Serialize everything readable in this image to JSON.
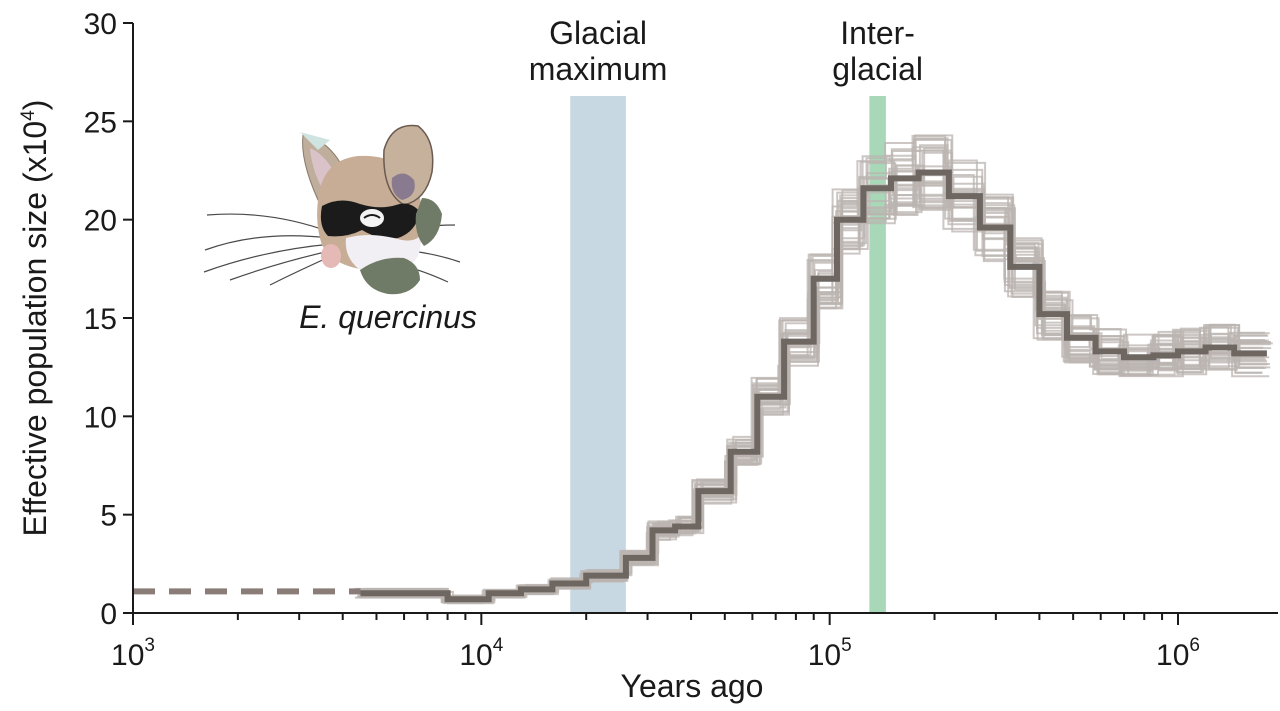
{
  "chart_data": {
    "type": "line",
    "x_scale": "log",
    "xlabel": "Years ago",
    "ylabel": "Effective population size (x10",
    "ylabel_superscript": "4",
    "ylabel_suffix": ")",
    "xlim": [
      1000,
      1800000
    ],
    "ylim": [
      0,
      30
    ],
    "grid": false,
    "yticks": [
      "0",
      "5",
      "10",
      "15",
      "20",
      "25",
      "30"
    ],
    "xticks": [
      {
        "base": "10",
        "exp": "3",
        "value": 1000
      },
      {
        "base": "10",
        "exp": "4",
        "value": 10000
      },
      {
        "base": "10",
        "exp": "5",
        "value": 100000
      },
      {
        "base": "10",
        "exp": "6",
        "value": 1000000
      }
    ],
    "species_label": "E. quercinus",
    "bands": [
      {
        "label_lines": [
          "Glacial",
          "maximum"
        ],
        "x_start": 18000,
        "x_end": 26000,
        "color": "#c8d8e2"
      },
      {
        "label_lines": [
          "Inter-",
          "glacial"
        ],
        "x_start": 130000,
        "x_end": 145000,
        "color": "#a8d8b8"
      }
    ],
    "dashed_extension": {
      "x": [
        1000,
        4500
      ],
      "y": 1.1,
      "color": "#8a7d77"
    },
    "main_series": {
      "color": "#6e6661",
      "steps_x": [
        4500,
        8000,
        10500,
        13000,
        16000,
        20000,
        26000,
        31000,
        36000,
        42000,
        52000,
        62000,
        74000,
        90000,
        105000,
        125000,
        150000,
        180000,
        220000,
        270000,
        330000,
        400000,
        480000,
        580000,
        700000,
        850000,
        1000000,
        1200000,
        1450000,
        1800000
      ],
      "steps_y": [
        1.0,
        0.7,
        1.0,
        1.2,
        1.5,
        1.9,
        2.8,
        4.2,
        4.4,
        6.2,
        8.2,
        11.0,
        13.8,
        17.0,
        20.0,
        21.6,
        22.1,
        22.4,
        21.2,
        19.6,
        17.6,
        15.2,
        14.0,
        13.3,
        13.0,
        13.1,
        13.3,
        13.5,
        13.2
      ]
    },
    "bootstrap_series": {
      "color": "#bbb4b0",
      "count": 30,
      "note": "bootstrap replicates drawn as a grey band around the main series"
    }
  }
}
